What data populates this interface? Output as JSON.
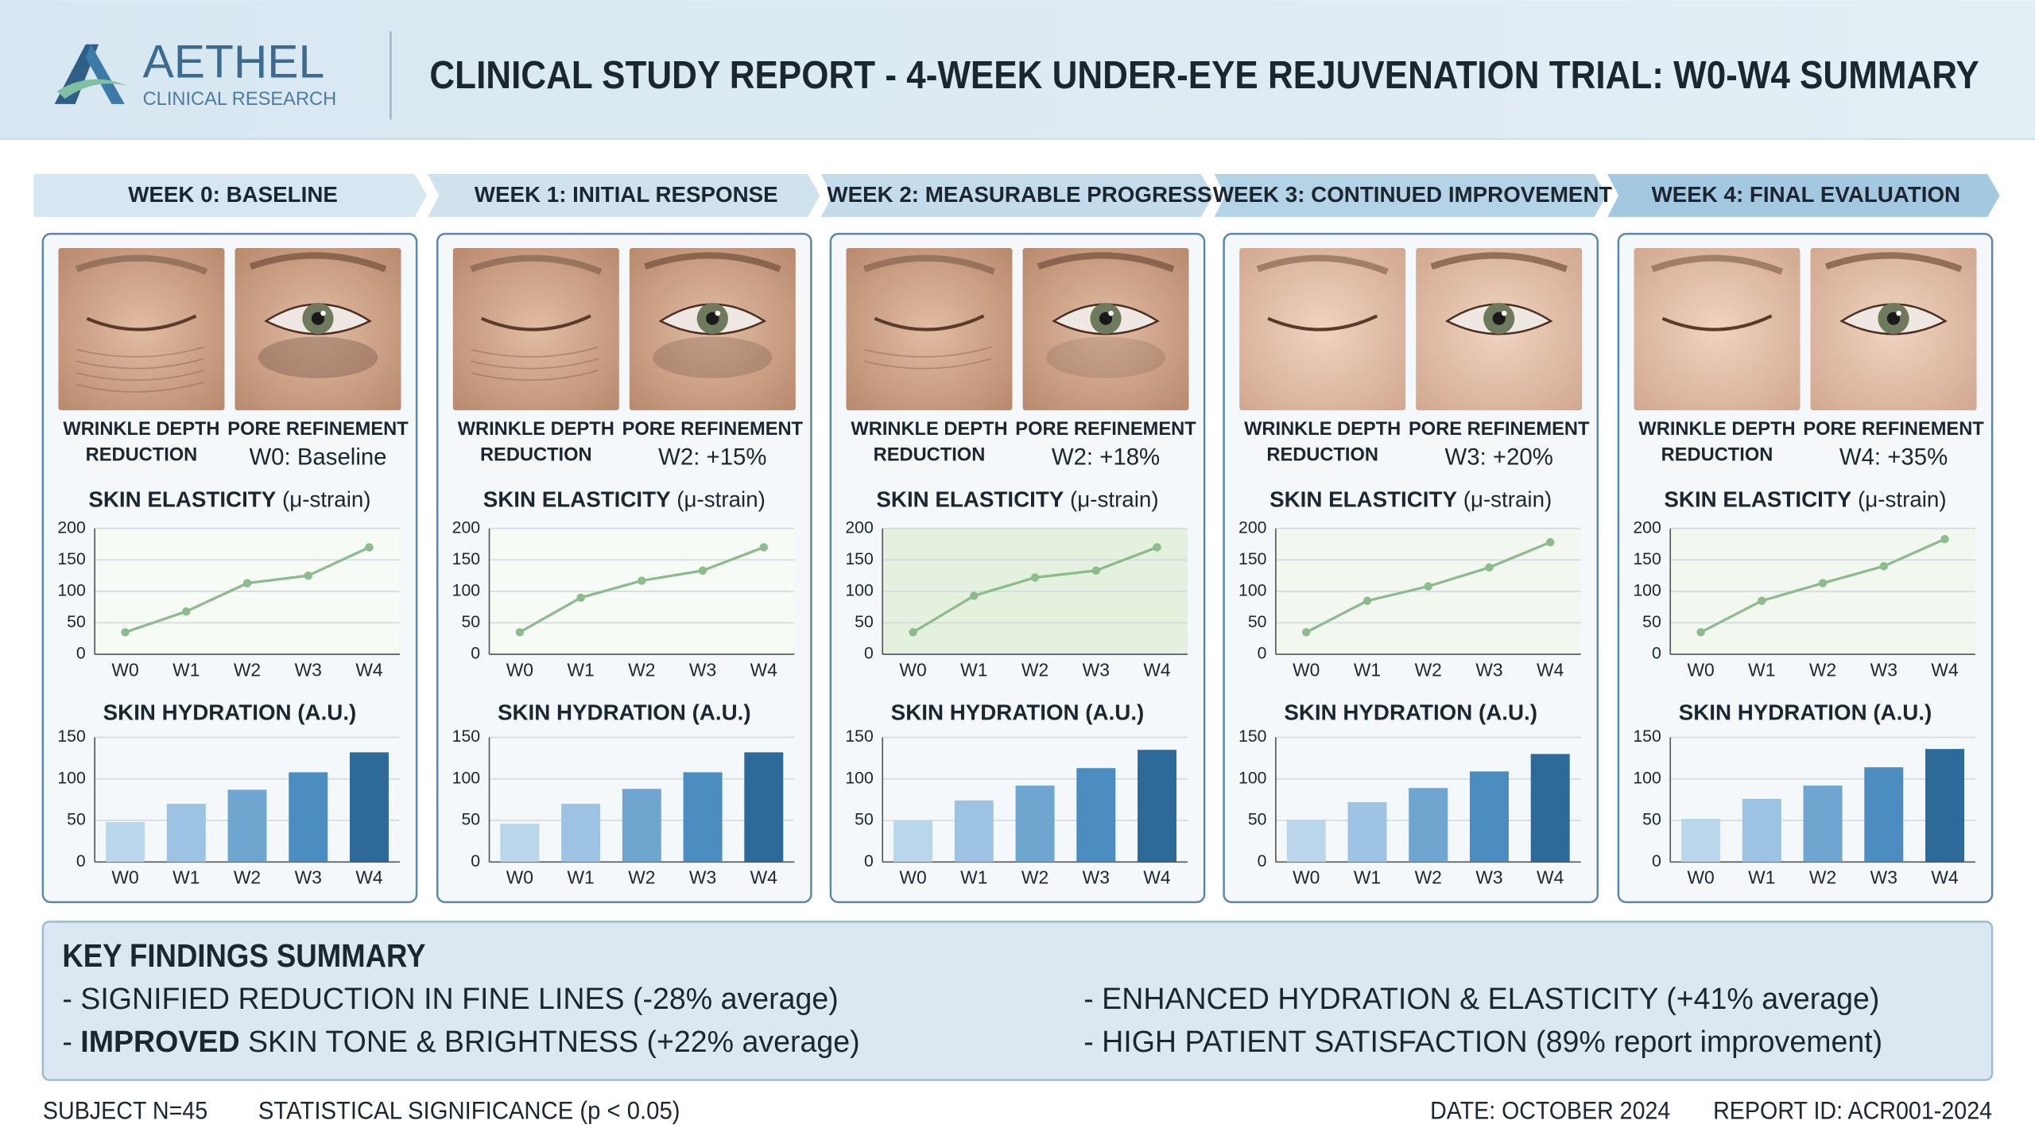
{
  "header": {
    "logo_name": "AETHEL",
    "logo_sub": "CLINICAL RESEARCH",
    "title": "CLINICAL STUDY REPORT - 4-WEEK UNDER-EYE REJUVENATION TRIAL: W0-W4 SUMMARY"
  },
  "weeks": [
    {
      "phase": "WEEK 0: BASELINE",
      "wrinkle_label": [
        "WRINKLE DEPTH",
        "REDUCTION"
      ],
      "pore_label": "PORE REFINEMENT",
      "pore_value": "W0: Baseline",
      "elasticity": {
        "type": "line",
        "title": "SKIN ELASTICITY",
        "unit": "(μ-strain)",
        "categories": [
          "W0",
          "W1",
          "W2",
          "W3",
          "W4"
        ],
        "values": [
          35,
          68,
          113,
          125,
          170
        ],
        "ylim": [
          0,
          200
        ],
        "yticks": [
          0,
          50,
          100,
          150,
          200
        ],
        "color": "#8dbb8d",
        "background": "#f7fbf6",
        "grid": true
      },
      "hydration": {
        "type": "bar",
        "title": "SKIN HYDRATION (A.U.)",
        "categories": [
          "W0",
          "W1",
          "W2",
          "W3",
          "W4"
        ],
        "values": [
          48,
          70,
          87,
          108,
          132
        ],
        "ylim": [
          0,
          150
        ],
        "yticks": [
          0,
          50,
          100,
          150
        ],
        "colors": [
          "#b9d6ea",
          "#9cc3e1",
          "#6fa6d0",
          "#4b8cc1",
          "#2e6a99"
        ],
        "grid": true
      }
    },
    {
      "phase": "WEEK 1: INITIAL RESPONSE",
      "wrinkle_label": [
        "WRINKLE DEPTH",
        "REDUCTION"
      ],
      "pore_label": "PORE REFINEMENT",
      "pore_value": "W2: +15%",
      "elasticity": {
        "type": "line",
        "title": "SKIN ELASTICITY",
        "unit": "(μ-strain)",
        "categories": [
          "W0",
          "W1",
          "W2",
          "W3",
          "W4"
        ],
        "values": [
          35,
          90,
          117,
          133,
          170
        ],
        "ylim": [
          0,
          200
        ],
        "yticks": [
          0,
          50,
          100,
          150,
          200
        ],
        "color": "#8dbb8d",
        "background": "#f7fbf6",
        "grid": true
      },
      "hydration": {
        "type": "bar",
        "title": "SKIN HYDRATION (A.U.)",
        "categories": [
          "W0",
          "W1",
          "W2",
          "W3",
          "W4"
        ],
        "values": [
          46,
          70,
          88,
          108,
          132
        ],
        "ylim": [
          0,
          150
        ],
        "yticks": [
          0,
          50,
          100,
          150
        ],
        "colors": [
          "#b9d6ea",
          "#9cc3e1",
          "#6fa6d0",
          "#4b8cc1",
          "#2e6a99"
        ],
        "grid": true
      }
    },
    {
      "phase": "WEEK 2: MEASURABLE PROGRESS",
      "wrinkle_label": [
        "WRINKLE DEPTH",
        "REDUCTION"
      ],
      "pore_label": "PORE REFINEMENT",
      "pore_value": "W2: +18%",
      "elasticity": {
        "type": "line",
        "title": "SKIN ELASTICITY",
        "unit": "(μ-strain)",
        "categories": [
          "W0",
          "W1",
          "W2",
          "W3",
          "W4"
        ],
        "values": [
          35,
          93,
          122,
          133,
          170
        ],
        "ylim": [
          0,
          200
        ],
        "yticks": [
          0,
          50,
          100,
          150,
          200
        ],
        "color": "#8dbb8d",
        "background": "#e4f1df",
        "grid": true
      },
      "hydration": {
        "type": "bar",
        "title": "SKIN HYDRATION (A.U.)",
        "categories": [
          "W0",
          "W1",
          "W2",
          "W3",
          "W4"
        ],
        "values": [
          50,
          74,
          92,
          113,
          135
        ],
        "ylim": [
          0,
          150
        ],
        "yticks": [
          0,
          50,
          100,
          150
        ],
        "colors": [
          "#b9d6ea",
          "#9cc3e1",
          "#6fa6d0",
          "#4b8cc1",
          "#2e6a99"
        ],
        "grid": true
      }
    },
    {
      "phase": "WEEK 3: CONTINUED IMPROVEMENT",
      "wrinkle_label": [
        "WRINKLE DEPTH",
        "REDUCTION"
      ],
      "pore_label": "PORE REFINEMENT",
      "pore_value": "W3: +20%",
      "elasticity": {
        "type": "line",
        "title": "SKIN ELASTICITY",
        "unit": "(μ-strain)",
        "categories": [
          "W0",
          "W1",
          "W2",
          "W3",
          "W4"
        ],
        "values": [
          35,
          85,
          108,
          138,
          178
        ],
        "ylim": [
          0,
          200
        ],
        "yticks": [
          0,
          50,
          100,
          150,
          200
        ],
        "color": "#8dbb8d",
        "background": "#f2f8f0",
        "grid": true
      },
      "hydration": {
        "type": "bar",
        "title": "SKIN HYDRATION (A.U.)",
        "categories": [
          "W0",
          "W1",
          "W2",
          "W3",
          "W4"
        ],
        "values": [
          51,
          72,
          89,
          109,
          130
        ],
        "ylim": [
          0,
          150
        ],
        "yticks": [
          0,
          50,
          100,
          150
        ],
        "colors": [
          "#b9d6ea",
          "#9cc3e1",
          "#6fa6d0",
          "#4b8cc1",
          "#2e6a99"
        ],
        "grid": true
      }
    },
    {
      "phase": "WEEK 4: FINAL EVALUATION",
      "wrinkle_label": [
        "WRINKLE DEPTH",
        "REDUCTION"
      ],
      "pore_label": "PORE REFINEMENT",
      "pore_value": "W4: +35%",
      "elasticity": {
        "type": "line",
        "title": "SKIN ELASTICITY",
        "unit": "(μ-strain)",
        "categories": [
          "W0",
          "W1",
          "W2",
          "W3",
          "W4"
        ],
        "values": [
          35,
          85,
          113,
          140,
          183
        ],
        "ylim": [
          0,
          200
        ],
        "yticks": [
          0,
          50,
          100,
          150,
          200
        ],
        "color": "#8dbb8d",
        "background": "#f2f8f0",
        "grid": true
      },
      "hydration": {
        "type": "bar",
        "title": "SKIN HYDRATION (A.U.)",
        "categories": [
          "W0",
          "W1",
          "W2",
          "W3",
          "W4"
        ],
        "values": [
          52,
          76,
          92,
          114,
          136
        ],
        "ylim": [
          0,
          150
        ],
        "yticks": [
          0,
          50,
          100,
          150
        ],
        "colors": [
          "#b9d6ea",
          "#9cc3e1",
          "#6fa6d0",
          "#4b8cc1",
          "#2e6a99"
        ],
        "grid": true
      }
    }
  ],
  "findings": {
    "title": "KEY FINDINGS SUMMARY",
    "items": [
      {
        "text": "- SIGNIFIED REDUCTION IN FINE LINES (-28% average)"
      },
      {
        "text": "- ENHANCED HYDRATION & ELASTICITY (+41% average)"
      },
      {
        "prefix": "- ",
        "bold": "IMPROVED",
        "rest": " SKIN TONE & BRIGHTNESS (+22% average)"
      },
      {
        "text": "- HIGH PATIENT SATISFACTION (89% report improvement)"
      }
    ]
  },
  "footer": {
    "subjects": "SUBJECT N=45",
    "significance": "STATISTICAL SIGNIFICANCE (p < 0.05)",
    "date": "DATE: OCTOBER 2024",
    "report_id": "REPORT ID: ACR001-2024"
  }
}
